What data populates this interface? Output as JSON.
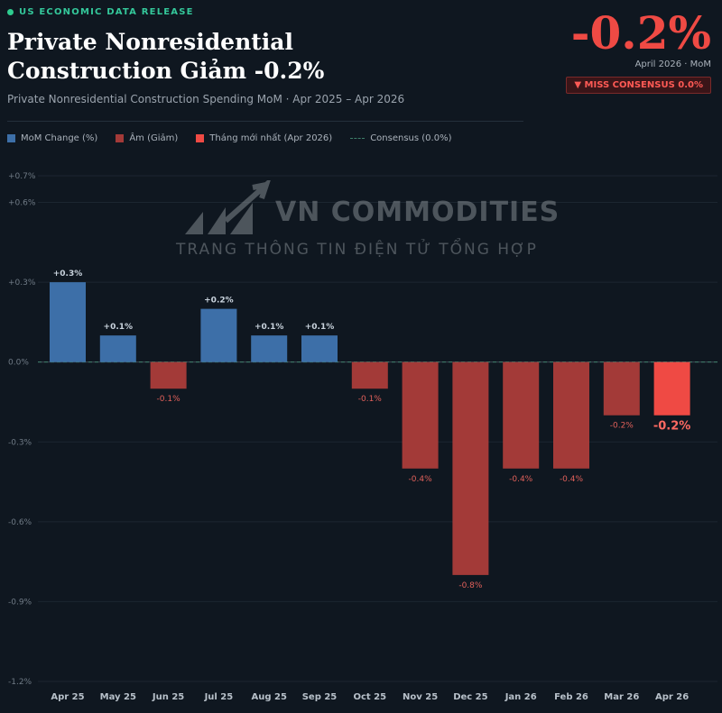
{
  "header": {
    "release_label": "US ECONOMIC DATA RELEASE",
    "title_line1": "Private Nonresidential",
    "title_line2": "Construction Giảm -0.2%",
    "subtitle": "Private Nonresidential Construction Spending MoM · Apr 2025 – Apr 2026"
  },
  "headline": {
    "value": "-0.2%",
    "period": "April 2026 · MoM",
    "badge": "▼ MISS CONSENSUS 0.0%"
  },
  "legend": {
    "mom": "MoM Change (%)",
    "neg": "Âm (Giảm)",
    "latest": "Tháng mới nhất (Apr 2026)",
    "consensus": "Consensus (0.0%)"
  },
  "watermark": {
    "brand": "VN COMMODITIES",
    "tagline": "TRANG THÔNG TIN ĐIỆN TỬ TỔNG HỢP"
  },
  "colors": {
    "positive": "#3d6fa8",
    "negative": "#a33a38",
    "latest": "#ef4a44",
    "accent": "#2ecc8f"
  },
  "chart_data": {
    "type": "bar",
    "categories": [
      "Apr 25",
      "May 25",
      "Jun 25",
      "Jul 25",
      "Aug 25",
      "Sep 25",
      "Oct 25",
      "Nov 25",
      "Dec 25",
      "Jan 26",
      "Feb 26",
      "Mar 26",
      "Apr 26"
    ],
    "values": [
      0.3,
      0.1,
      -0.1,
      0.2,
      0.1,
      0.1,
      -0.1,
      -0.4,
      -0.8,
      -0.4,
      -0.4,
      -0.2,
      -0.2
    ],
    "labels": [
      "+0.3%",
      "+0.1%",
      "-0.1%",
      "+0.2%",
      "+0.1%",
      "+0.1%",
      "-0.1%",
      "-0.4%",
      "-0.8%",
      "-0.4%",
      "-0.4%",
      "-0.2%",
      "-0.2%"
    ],
    "yticks": [
      0.7,
      0.6,
      0.3,
      0.0,
      -0.3,
      -0.6,
      -0.9,
      -1.2
    ],
    "ytick_labels": [
      "+0.7%",
      "+0.6%",
      "+0.3%",
      "0.0%",
      "-0.3%",
      "-0.6%",
      "-0.9%",
      "-1.2%"
    ],
    "ylim": [
      -1.2,
      0.7
    ],
    "consensus": 0.0,
    "latest_index": 12,
    "grid": true
  }
}
